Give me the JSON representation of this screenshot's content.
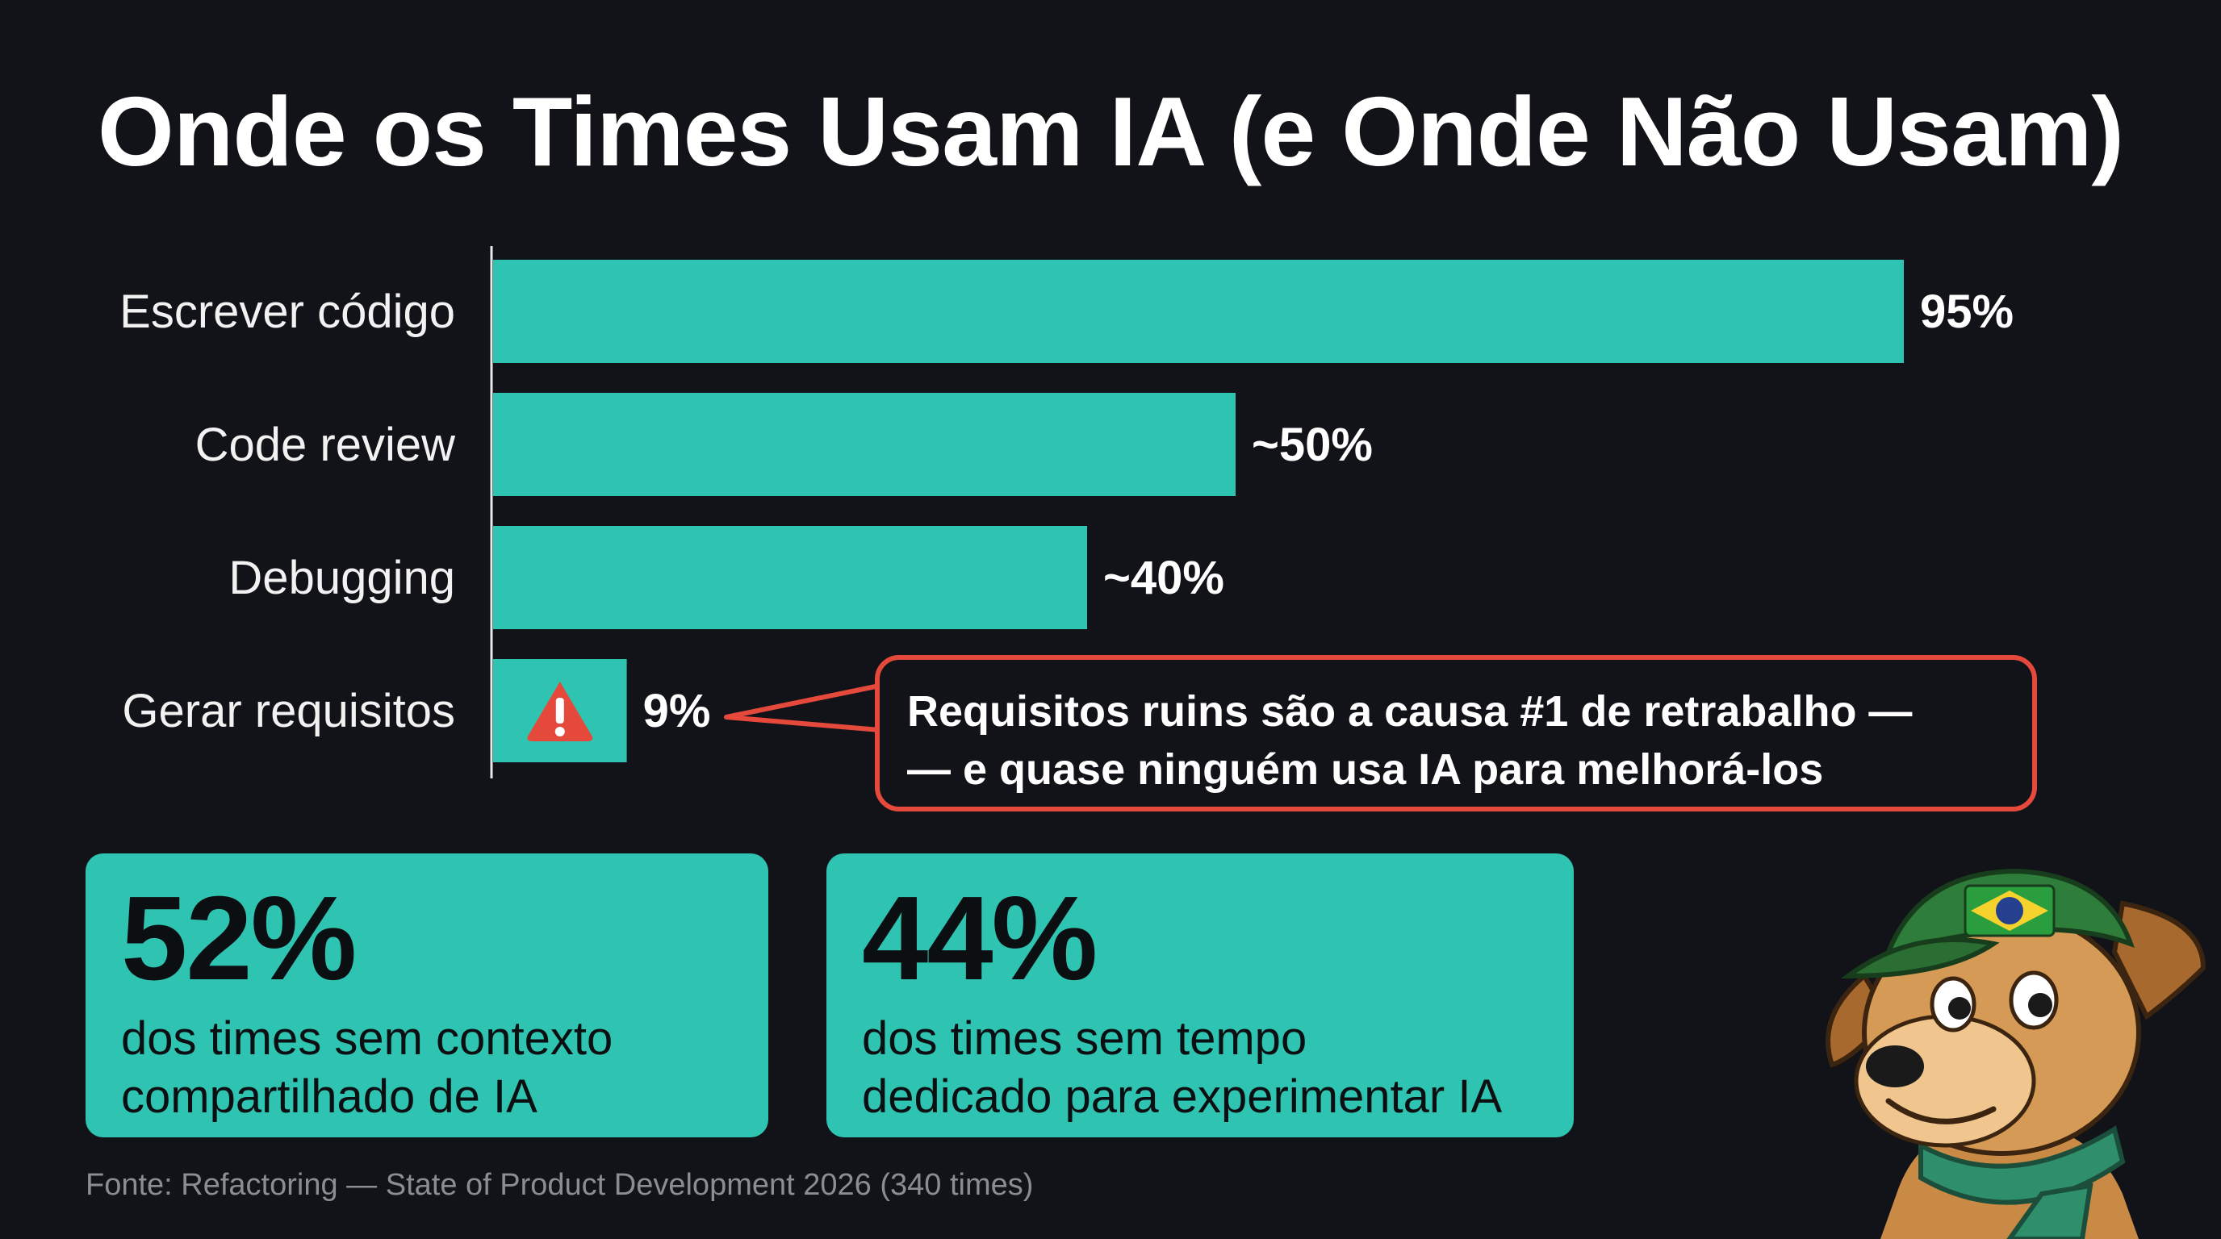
{
  "title": "Onde os Times Usam IA (e Onde Não Usam)",
  "chart_data": {
    "type": "bar",
    "orientation": "horizontal",
    "categories": [
      "Escrever código",
      "Code review",
      "Debugging",
      "Gerar requisitos"
    ],
    "values": [
      95,
      50,
      40,
      9
    ],
    "value_labels": [
      "95%",
      "~50%",
      "~40%",
      "9%"
    ],
    "xlim": [
      0,
      100
    ],
    "grid": false,
    "highlight": {
      "category": "Gerar requisitos",
      "icon": "warning-icon",
      "color": "#e5493c"
    }
  },
  "colors": {
    "background": "#111318",
    "bar": "#2ec4b1",
    "accent": "#e5493c",
    "card": "#2ec4b1"
  },
  "callout": {
    "line1": "Requisitos ruins são a causa #1 de retrabalho —",
    "line2": "— e quase ninguém usa IA para melhorá-los"
  },
  "stats": [
    {
      "value": "52%",
      "line1": "dos times sem contexto",
      "line2": "compartilhado de IA"
    },
    {
      "value": "44%",
      "line1": "dos times sem tempo",
      "line2": "dedicado para experimentar IA"
    }
  ],
  "source": "Fonte: Refactoring — State of Product Development 2026 (340 times)",
  "mascot": {
    "icon": "dog-mascot-icon",
    "cap_icon": "brazil-flag-icon"
  }
}
